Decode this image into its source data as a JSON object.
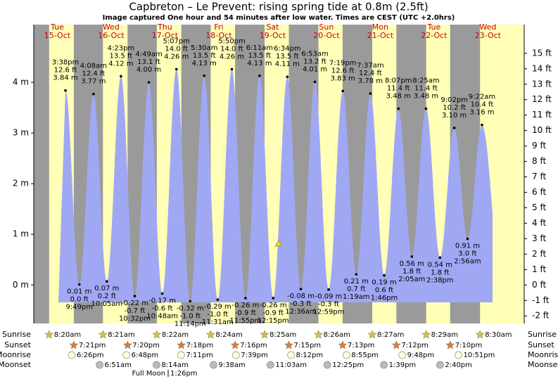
{
  "chart_data": {
    "type": "tide",
    "title": "Capbreton – Le Prevent: rising  spring tide at 0.8m (2.5ft)",
    "subtitle": "Image captured One hour and 54 minutes after low water. Times are CEST (UTC +2.0hrs)",
    "days": [
      {
        "weekday": "Tue",
        "date": "15-Oct"
      },
      {
        "weekday": "Wed",
        "date": "16-Oct"
      },
      {
        "weekday": "Thu",
        "date": "17-Oct"
      },
      {
        "weekday": "Fri",
        "date": "18-Oct"
      },
      {
        "weekday": "Sat",
        "date": "19-Oct"
      },
      {
        "weekday": "Sun",
        "date": "20-Oct"
      },
      {
        "weekday": "Mon",
        "date": "21-Oct"
      },
      {
        "weekday": "Tue",
        "date": "22-Oct"
      },
      {
        "weekday": "Wed",
        "date": "23-Oct"
      }
    ],
    "times": [
      "3:38pm",
      "9:49pm",
      "4:08am",
      "10:05am",
      "4:23pm",
      "10:32pm",
      "4:49am",
      "10:48am",
      "5:07pm",
      "11:14pm",
      "5:30am",
      "11:31am",
      "5:50pm",
      "11:55pm",
      "6:11am",
      "12:15pm",
      "6:34pm",
      "12:36am",
      "6:53am",
      "12:59pm",
      "7:19pm",
      "1:19am",
      "7:37am",
      "1:46pm",
      "8:07pm",
      "2:05am",
      "8:25am",
      "2:38pm",
      "9:02pm",
      "2:56am",
      "9:22am"
    ],
    "values": [
      3.84,
      0.01,
      3.77,
      0.07,
      4.12,
      -0.22,
      4.0,
      -0.17,
      4.26,
      -0.32,
      4.13,
      -0.29,
      4.26,
      -0.26,
      4.13,
      -0.26,
      4.11,
      -0.08,
      4.01,
      -0.09,
      3.83,
      0.21,
      3.78,
      0.19,
      3.48,
      0.56,
      3.48,
      0.54,
      3.1,
      0.91,
      3.16
    ],
    "value_labels": [
      "3.84 m",
      "0.01 m",
      "3.77 m",
      "0.07 m",
      "4.12 m",
      "-0.22 m",
      "4.00 m",
      "-0.17 m",
      "4.26 m",
      "-0.32 m",
      "4.13 m",
      "-0.29 m",
      "4.26 m",
      "-0.26 m",
      "4.13 m",
      "-0.26 m",
      "4.11 m",
      "-0.08 m",
      "4.01 m",
      "-0.09 m",
      "3.83 m",
      "0.21 m",
      "3.78 m",
      "0.19 m",
      "3.48 m",
      "0.56 m",
      "3.48 m",
      "0.54 m",
      "3.10 m",
      "0.91 m",
      "3.16 m"
    ],
    "ft_labels": [
      "12.6 ft",
      "0.0 ft",
      "12.4 ft",
      "0.2 ft",
      "13.5 ft",
      "-0.7 ft",
      "13.1 ft",
      "-0.6 ft",
      "14.0 ft",
      "-1.0 ft",
      "13.5 ft",
      "-1.0 ft",
      "14.0 ft",
      "-0.9 ft",
      "13.5 ft",
      "-0.9 ft",
      "13.5 ft",
      "-0.3 ft",
      "13.2 ft",
      "-0.3 ft",
      "12.6 ft",
      "0.7 ft",
      "12.4 ft",
      "0.6 ft",
      "11.4 ft",
      "1.8 ft",
      "11.4 ft",
      "1.8 ft",
      "10.2 ft",
      "3.0 ft",
      "10.4 ft"
    ],
    "ylim": [
      -0.76,
      5.14
    ],
    "yticks": [
      {
        "value": 0,
        "label": "0 m"
      },
      {
        "value": 1,
        "label": "1 m"
      },
      {
        "value": 2,
        "label": "2 m"
      },
      {
        "value": 3,
        "label": "3 m"
      },
      {
        "value": 4,
        "label": "4 m"
      }
    ],
    "y2lim": [
      -2.49,
      16.86
    ],
    "y2ticks": [
      {
        "value": -2,
        "label": "-2 ft"
      },
      {
        "value": -1,
        "label": "-1 ft"
      },
      {
        "value": 0,
        "label": "0 ft"
      },
      {
        "value": 1,
        "label": "1 ft"
      },
      {
        "value": 2,
        "label": "2 ft"
      },
      {
        "value": 3,
        "label": "3 ft"
      },
      {
        "value": 4,
        "label": "4 ft"
      },
      {
        "value": 5,
        "label": "5 ft"
      },
      {
        "value": 6,
        "label": "6 ft"
      },
      {
        "value": 7,
        "label": "7 ft"
      },
      {
        "value": 8,
        "label": "8 ft"
      },
      {
        "value": 9,
        "label": "9 ft"
      },
      {
        "value": 10,
        "label": "10 ft"
      },
      {
        "value": 11,
        "label": "11 ft"
      },
      {
        "value": 12,
        "label": "12 ft"
      },
      {
        "value": 13,
        "label": "13 ft"
      },
      {
        "value": 14,
        "label": "14 ft"
      },
      {
        "value": 15,
        "label": "15 ft"
      }
    ],
    "row_labels": {
      "sunrise": "Sunrise",
      "sunset": "Sunset",
      "moonrise": "Moonrise",
      "moonset": "Moonset"
    },
    "sunrise": [
      "8:20am",
      "8:21am",
      "8:22am",
      "8:24am",
      "8:25am",
      "8:26am",
      "8:27am",
      "8:29am",
      "8:30am"
    ],
    "sunset": [
      "7:21pm",
      "7:20pm",
      "7:18pm",
      "7:16pm",
      "7:15pm",
      "7:13pm",
      "7:12pm",
      "7:10pm"
    ],
    "moonrise": [
      "6:26pm",
      "6:48pm",
      "7:11pm",
      "7:39pm",
      "8:12pm",
      "8:55pm",
      "9:48pm",
      "10:51pm"
    ],
    "moonset": [
      "6:51am",
      "8:14am",
      "9:38am",
      "11:03am",
      "12:25pm",
      "1:39pm",
      "2:40pm"
    ],
    "full_moon": {
      "label": "Full Moon",
      "time": "1:26pm"
    },
    "colors": {
      "night": "#9a9a9a",
      "day": "#ffffb8",
      "water": "#a0a8f4",
      "day_label": "#cc0000"
    }
  }
}
